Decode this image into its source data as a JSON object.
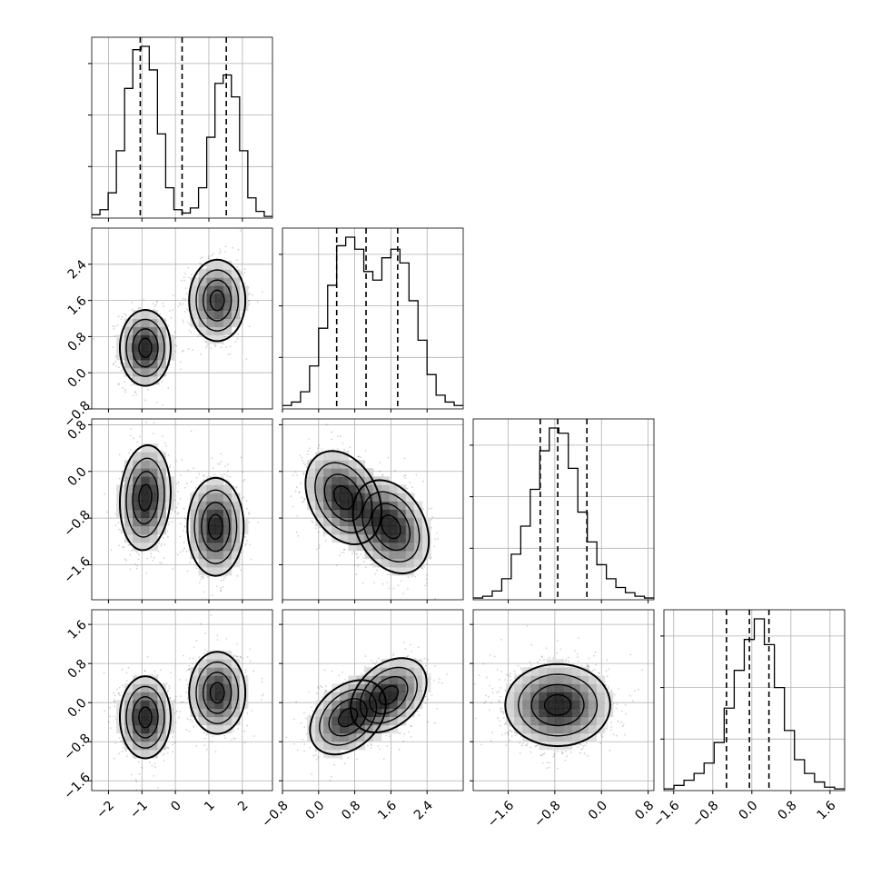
{
  "chart_data": {
    "type": "corner",
    "title": "",
    "grid": true,
    "parameters": [
      {
        "index": 0,
        "range": [
          -2.5,
          2.9
        ],
        "ticks": [
          -2,
          -1,
          0,
          1,
          2
        ],
        "tick_labels": [
          "−2",
          "−1",
          "0",
          "1",
          "2"
        ]
      },
      {
        "index": 1,
        "range": [
          -0.8,
          3.2
        ],
        "ticks": [
          -0.8,
          0.0,
          0.8,
          1.6,
          2.4
        ],
        "tick_labels": [
          "−0.8",
          "0.0",
          "0.8",
          "1.6",
          "2.4"
        ]
      },
      {
        "index": 2,
        "range": [
          -2.2,
          0.9
        ],
        "ticks": [
          -1.6,
          -0.8,
          0.0,
          0.8
        ],
        "tick_labels": [
          "−1.6",
          "−0.8",
          "0.0",
          "0.8"
        ]
      },
      {
        "index": 3,
        "range": [
          -1.8,
          1.9
        ],
        "ticks": [
          -1.6,
          -0.8,
          0.0,
          0.8,
          1.6
        ],
        "tick_labels": [
          "−1.6",
          "−0.8",
          "0.0",
          "0.8",
          "1.6"
        ]
      }
    ],
    "histograms": [
      {
        "param": 0,
        "quantiles": [
          -1.05,
          0.2,
          1.52
        ],
        "counts": [
          0.02,
          0.05,
          0.15,
          0.4,
          0.77,
          1.0,
          1.02,
          0.88,
          0.5,
          0.18,
          0.05,
          0.03,
          0.06,
          0.18,
          0.48,
          0.8,
          0.85,
          0.72,
          0.4,
          0.12,
          0.04,
          0.01
        ]
      },
      {
        "param": 1,
        "quantiles": [
          0.4,
          1.05,
          1.75
        ],
        "counts": [
          0.02,
          0.04,
          0.1,
          0.25,
          0.47,
          0.72,
          0.95,
          1.0,
          0.93,
          0.8,
          0.75,
          0.88,
          0.93,
          0.85,
          0.63,
          0.4,
          0.2,
          0.08,
          0.04,
          0.02
        ]
      },
      {
        "param": 2,
        "quantiles": [
          -1.05,
          -0.75,
          -0.25
        ],
        "counts": [
          0.01,
          0.02,
          0.05,
          0.12,
          0.26,
          0.42,
          0.63,
          0.85,
          0.98,
          0.95,
          0.75,
          0.5,
          0.33,
          0.2,
          0.12,
          0.07,
          0.04,
          0.02,
          0.01
        ]
      },
      {
        "param": 3,
        "quantiles": [
          -0.52,
          -0.05,
          0.35
        ],
        "counts": [
          0.01,
          0.03,
          0.06,
          0.1,
          0.16,
          0.28,
          0.48,
          0.7,
          0.88,
          1.0,
          0.85,
          0.6,
          0.35,
          0.18,
          0.1,
          0.05,
          0.02,
          0.01
        ]
      }
    ],
    "scatter_panels": [
      {
        "x": 0,
        "y": 1,
        "modes": [
          {
            "x": -0.9,
            "y": 0.55,
            "sx": 0.38,
            "sy": 0.42,
            "rho": 0.0,
            "w": 0.5
          },
          {
            "x": 1.25,
            "y": 1.6,
            "sx": 0.42,
            "sy": 0.45,
            "rho": 0.0,
            "w": 0.5
          }
        ]
      },
      {
        "x": 0,
        "y": 2,
        "modes": [
          {
            "x": -0.9,
            "y": -0.45,
            "sx": 0.38,
            "sy": 0.45,
            "rho": 0.1,
            "w": 0.5
          },
          {
            "x": 1.2,
            "y": -0.95,
            "sx": 0.42,
            "sy": 0.42,
            "rho": 0.0,
            "w": 0.5
          }
        ]
      },
      {
        "x": 1,
        "y": 2,
        "modes": [
          {
            "x": 0.55,
            "y": -0.45,
            "sx": 0.42,
            "sy": 0.4,
            "rho": -0.3,
            "w": 0.5
          },
          {
            "x": 1.6,
            "y": -0.95,
            "sx": 0.42,
            "sy": 0.4,
            "rho": -0.3,
            "w": 0.5
          }
        ]
      },
      {
        "x": 0,
        "y": 3,
        "modes": [
          {
            "x": -0.9,
            "y": -0.3,
            "sx": 0.38,
            "sy": 0.42,
            "rho": 0.0,
            "w": 0.5
          },
          {
            "x": 1.25,
            "y": 0.2,
            "sx": 0.42,
            "sy": 0.42,
            "rho": 0.0,
            "w": 0.5
          }
        ]
      },
      {
        "x": 1,
        "y": 3,
        "modes": [
          {
            "x": 0.65,
            "y": -0.3,
            "sx": 0.42,
            "sy": 0.38,
            "rho": 0.35,
            "w": 0.5
          },
          {
            "x": 1.55,
            "y": 0.15,
            "sx": 0.42,
            "sy": 0.38,
            "rho": 0.35,
            "w": 0.5
          }
        ]
      },
      {
        "x": 2,
        "y": 3,
        "modes": [
          {
            "x": -0.75,
            "y": -0.05,
            "sx": 0.45,
            "sy": 0.42,
            "rho": 0.0,
            "w": 1.0
          }
        ]
      }
    ],
    "colors": {
      "line": "#000000",
      "grid": "#b0b0b0",
      "points": "#000000",
      "frame": "#000000"
    }
  }
}
